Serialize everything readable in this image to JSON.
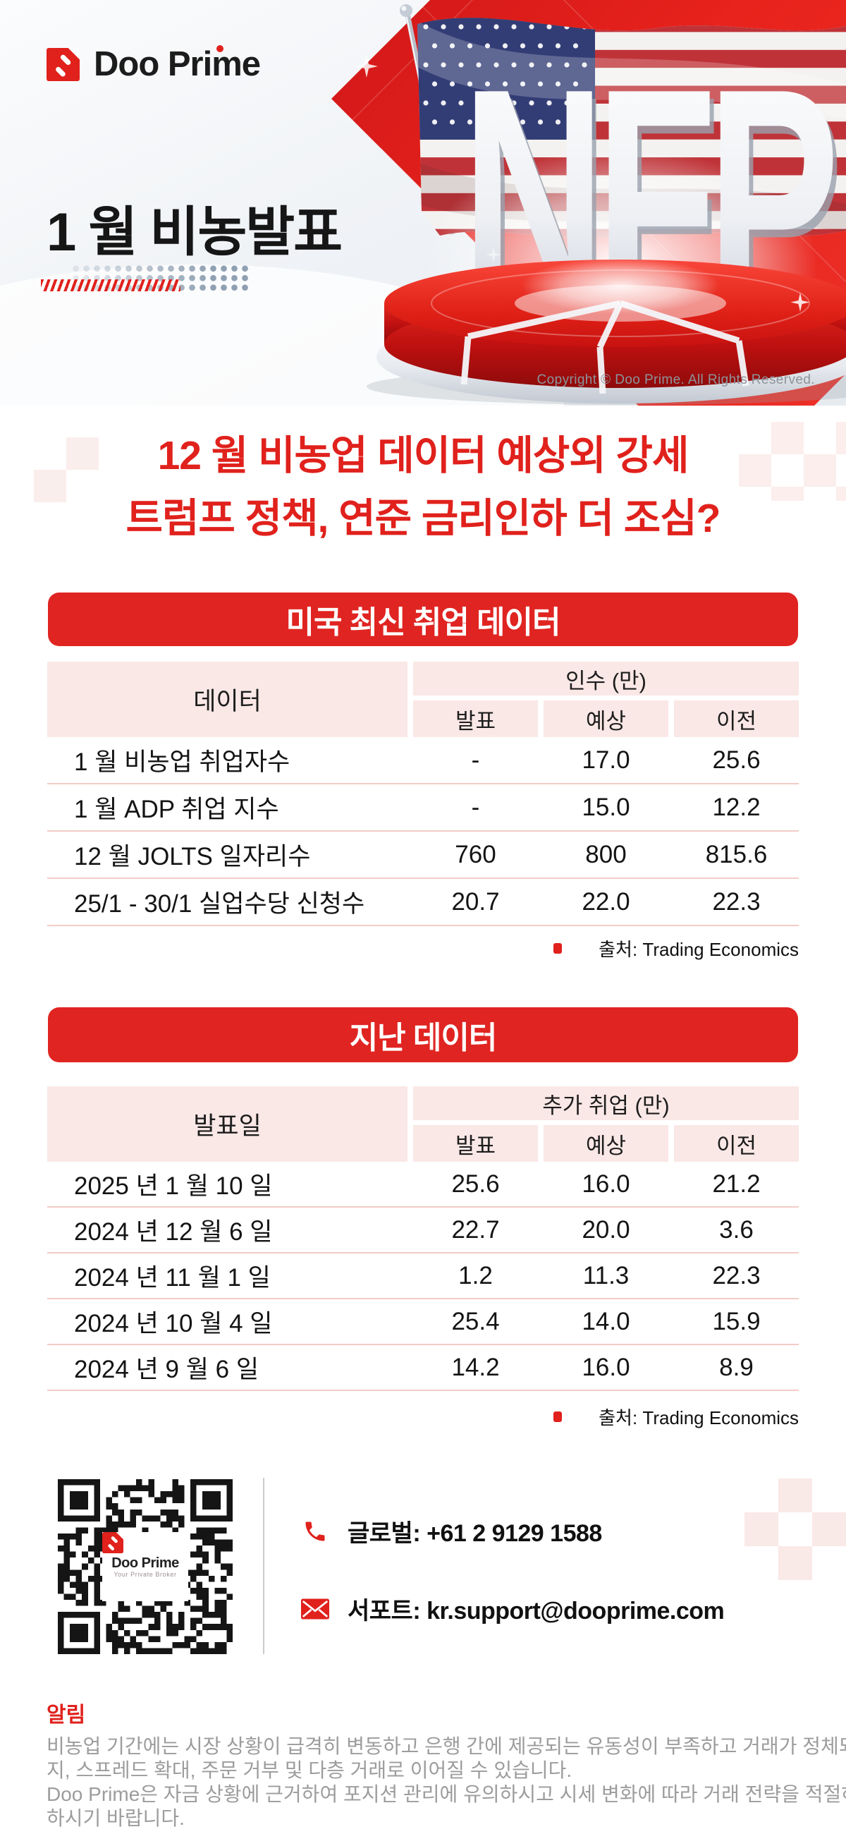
{
  "brand": {
    "name": "Doo Prime",
    "tagline": "Your Private Broker"
  },
  "hero": {
    "title": "1 월 비농발표",
    "nfp": "NFP",
    "copyright": "Copyright © Doo Prime. All Rights Reserved."
  },
  "headline": {
    "line1": "12 월 비농업 데이터 예상외 강세",
    "line2": "트럼프 정책, 연준 금리인하 더 조심?"
  },
  "section_latest": {
    "banner": "미국 최신 취업 데이터",
    "table": {
      "left_header": "데이터",
      "group_header": "인수 (만)",
      "sub_headers": [
        "발표",
        "예상",
        "이전"
      ],
      "rows": [
        {
          "label": "1 월 비농업 취업자수",
          "announced": "-",
          "expected": "17.0",
          "previous": "25.6"
        },
        {
          "label": "1 월 ADP 취업 지수",
          "announced": "-",
          "expected": "15.0",
          "previous": "12.2"
        },
        {
          "label": "12 월 JOLTS 일자리수",
          "announced": "760",
          "expected": "800",
          "previous": "815.6"
        },
        {
          "label": "25/1 - 30/1 실업수당 신청수",
          "announced": "20.7",
          "expected": "22.0",
          "previous": "22.3"
        }
      ]
    },
    "source": "출처:  Trading Economics"
  },
  "section_history": {
    "banner": "지난 데이터",
    "table": {
      "left_header": "발표일",
      "group_header": "추가 취업 (만)",
      "sub_headers": [
        "발표",
        "예상",
        "이전"
      ],
      "rows": [
        {
          "label": "2025 년 1 월 10 일",
          "announced": "25.6",
          "expected": "16.0",
          "previous": "21.2"
        },
        {
          "label": "2024 년 12 월 6 일",
          "announced": "22.7",
          "expected": "20.0",
          "previous": "3.6"
        },
        {
          "label": "2024 년 11 월 1 일",
          "announced": "1.2",
          "expected": "11.3",
          "previous": "22.3"
        },
        {
          "label": "2024 년 10 월 4 일",
          "announced": "25.4",
          "expected": "14.0",
          "previous": "15.9"
        },
        {
          "label": "2024 년 9 월 6 일",
          "announced": "14.2",
          "expected": "16.0",
          "previous": "8.9"
        }
      ]
    },
    "source": "출처:  Trading Economics"
  },
  "contact": {
    "phone": "글로벌:  +61 2 9129 1588",
    "email": "서포트:  kr.support@dooprime.com"
  },
  "notice": {
    "heading": "알림",
    "lines": [
      "비농업 기간에는 시장 상황이 급격히 변동하고 은행 간에 제공되는 유동성이 부족하고 거래가 정체되어 슬리피",
      "지, 스프레드 확대, 주문 거부 및 다층 거래로 이어질 수 있습니다.",
      "Doo Prime은 자금 상황에 근거하여 포지션 관리에 유의하시고 시세 변화에 따라 거래 전략을 적절하게 조정",
      "하시기 바랍니다."
    ]
  },
  "colors": {
    "brand_red": "#E0211C",
    "banner_red": "#E02421",
    "pink_header": "#FAE8E6",
    "row_separator": "#F2CCC6",
    "notice_text": "#9C9C9C",
    "dots_blue_gray": "#8FA0B2"
  }
}
